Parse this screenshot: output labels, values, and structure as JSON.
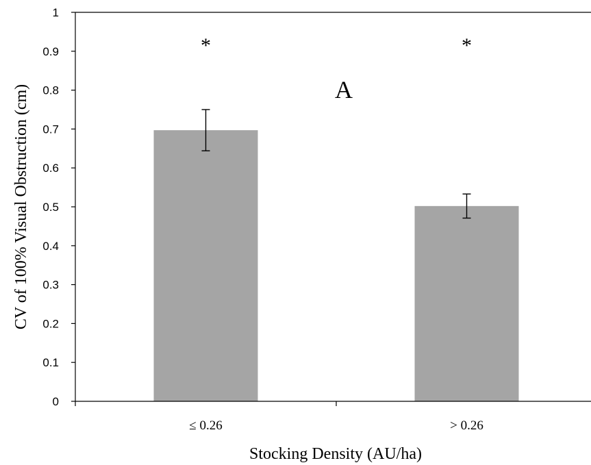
{
  "chart_data": {
    "type": "bar",
    "categories": [
      "≤ 0.26",
      "> 0.26"
    ],
    "values": [
      0.697,
      0.502
    ],
    "error": [
      0.053,
      0.031
    ],
    "xlabel": "Stocking Density (AU/ha)",
    "ylabel": "CV of 100% Visual Obstruction (cm)",
    "ylim": [
      0,
      1
    ],
    "yticks": [
      "0",
      "0.1",
      "0.2",
      "0.3",
      "0.4",
      "0.5",
      "0.6",
      "0.7",
      "0.8",
      "0.9",
      "1"
    ],
    "significance_markers": [
      "*",
      "*"
    ],
    "panel_label": "A",
    "bar_color": "#a5a5a5",
    "grid": false,
    "legend": "none"
  }
}
